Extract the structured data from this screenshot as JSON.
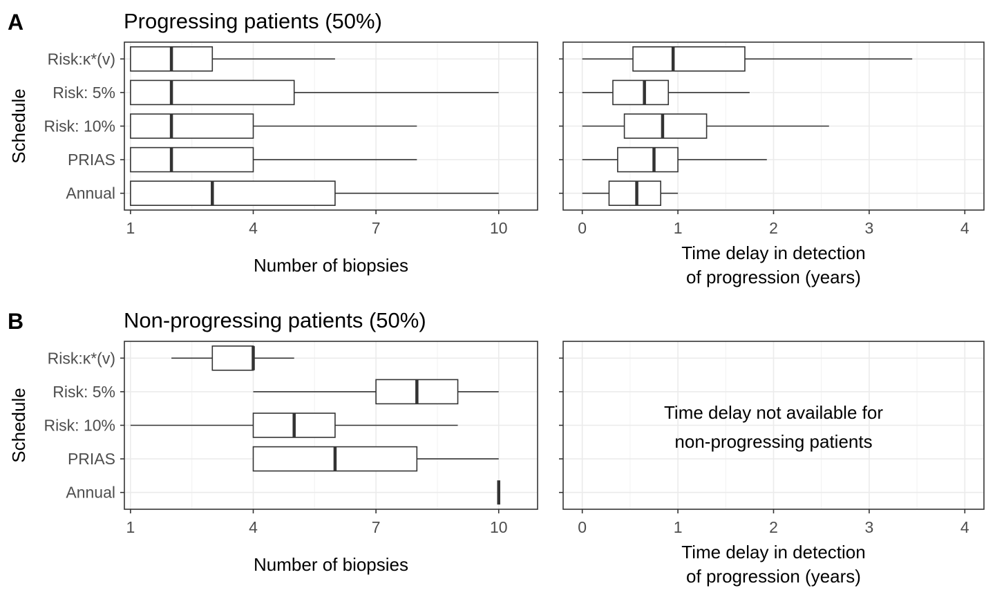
{
  "chart_data": [
    {
      "id": "A-biopsies",
      "panel_tag": "A",
      "title": "Progressing patients (50%)",
      "type": "boxplot",
      "orientation": "horizontal",
      "xlabel": "Number of biopsies",
      "ylabel": "Schedule",
      "xlim": [
        0.85,
        10.95
      ],
      "xticks": [
        1,
        4,
        7,
        10
      ],
      "xtick_labels": [
        "1",
        "4",
        "7",
        "10"
      ],
      "grid": true,
      "categories": [
        "Risk:κ*(v)",
        "Risk: 5%",
        "Risk: 10%",
        "PRIAS",
        "Annual"
      ],
      "boxes": [
        {
          "min": 1,
          "q1": 1,
          "median": 2,
          "q3": 3,
          "max": 6
        },
        {
          "min": 1,
          "q1": 1,
          "median": 2,
          "q3": 5,
          "max": 10
        },
        {
          "min": 1,
          "q1": 1,
          "median": 2,
          "q3": 4,
          "max": 8
        },
        {
          "min": 1,
          "q1": 1,
          "median": 2,
          "q3": 4,
          "max": 8
        },
        {
          "min": 1,
          "q1": 1,
          "median": 3,
          "q3": 6,
          "max": 10
        }
      ]
    },
    {
      "id": "A-delay",
      "title": "",
      "type": "boxplot",
      "orientation": "horizontal",
      "xlabel": [
        "Time delay in detection",
        "of progression (years)"
      ],
      "ylabel": "",
      "xlim": [
        -0.2,
        4.2
      ],
      "xticks": [
        0,
        1,
        2,
        3,
        4
      ],
      "xtick_labels": [
        "0",
        "1",
        "2",
        "3",
        "4"
      ],
      "grid": true,
      "categories": [
        "Risk:κ*(v)",
        "Risk: 5%",
        "Risk: 10%",
        "PRIAS",
        "Annual"
      ],
      "boxes": [
        {
          "min": 0,
          "q1": 0.53,
          "median": 0.95,
          "q3": 1.7,
          "max": 3.45
        },
        {
          "min": 0,
          "q1": 0.32,
          "median": 0.65,
          "q3": 0.9,
          "max": 1.75
        },
        {
          "min": 0,
          "q1": 0.44,
          "median": 0.84,
          "q3": 1.3,
          "max": 2.58
        },
        {
          "min": 0,
          "q1": 0.37,
          "median": 0.75,
          "q3": 1.0,
          "max": 1.93
        },
        {
          "min": 0,
          "q1": 0.28,
          "median": 0.57,
          "q3": 0.82,
          "max": 1.0
        }
      ]
    },
    {
      "id": "B-biopsies",
      "panel_tag": "B",
      "title": "Non-progressing patients (50%)",
      "type": "boxplot",
      "orientation": "horizontal",
      "xlabel": "Number of biopsies",
      "ylabel": "Schedule",
      "xlim": [
        0.85,
        10.95
      ],
      "xticks": [
        1,
        4,
        7,
        10
      ],
      "xtick_labels": [
        "1",
        "4",
        "7",
        "10"
      ],
      "grid": true,
      "categories": [
        "Risk:κ*(v)",
        "Risk: 5%",
        "Risk: 10%",
        "PRIAS",
        "Annual"
      ],
      "boxes": [
        {
          "min": 2,
          "q1": 3,
          "median": 4,
          "q3": 4,
          "max": 5
        },
        {
          "min": 4,
          "q1": 7,
          "median": 8,
          "q3": 9,
          "max": 10
        },
        {
          "min": 1,
          "q1": 4,
          "median": 5,
          "q3": 6,
          "max": 9
        },
        {
          "min": 4,
          "q1": 4,
          "median": 6,
          "q3": 8,
          "max": 10
        },
        {
          "min": 10,
          "q1": 10,
          "median": 10,
          "q3": 10,
          "max": 10
        }
      ]
    },
    {
      "id": "B-delay",
      "title": "",
      "type": "boxplot",
      "orientation": "horizontal",
      "xlabel": [
        "Time delay in detection",
        "of progression (years)"
      ],
      "ylabel": "",
      "xlim": [
        -0.2,
        4.2
      ],
      "xticks": [
        0,
        1,
        2,
        3,
        4
      ],
      "xtick_labels": [
        "0",
        "1",
        "2",
        "3",
        "4"
      ],
      "grid": true,
      "categories": [
        "Risk:κ*(v)",
        "Risk: 5%",
        "Risk: 10%",
        "PRIAS",
        "Annual"
      ],
      "boxes": [],
      "annotation": [
        "Time delay not available for",
        "non-progressing patients"
      ]
    }
  ]
}
